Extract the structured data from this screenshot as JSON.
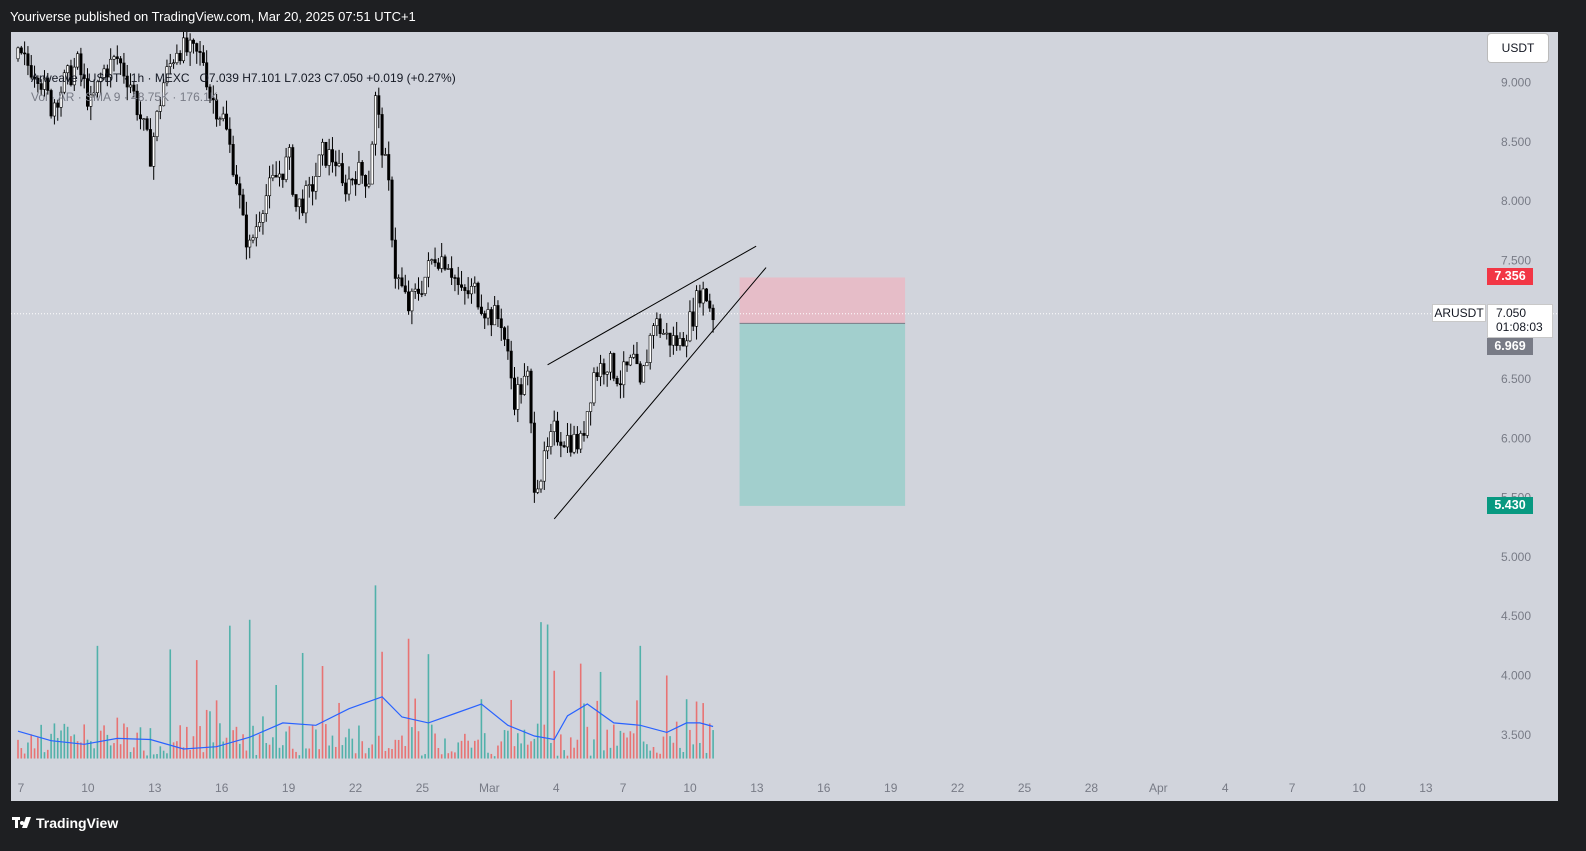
{
  "header": {
    "attribution": "Youriverse published on TradingView.com, Mar 20, 2025 07:51 UTC+1"
  },
  "footer": {
    "brand": "TradingView"
  },
  "legend": {
    "symbol_text": "Arweave / USDT · 1h · MEXC",
    "ohlc_text": "O7.039 H7.101 L7.023 C7.050 +0.019 (+0.27%)",
    "volume_text": "Vol · AR · SMA 9 · 48.75K · 176.1K"
  },
  "currency_button": "USDT",
  "price_tags": {
    "stop": "7.356",
    "entry": "6.969",
    "target": "5.430",
    "last_symbol": "ARUSDT",
    "last_price": "7.050",
    "countdown": "01:08:03"
  },
  "colors": {
    "up": "#26a69a",
    "down": "#ef5350",
    "candle": "#000000",
    "stop_zone": "#f7a9b8",
    "target_zone": "#8fcdc6",
    "sma": "#2962ff",
    "stop_tag": "#f23645",
    "entry_tag": "#787b86",
    "target_tag": "#089981"
  },
  "chart_data": {
    "type": "candlestick",
    "symbol": "ARUSDT",
    "ylim": [
      3.3,
      9.3
    ],
    "y_ticks": [
      "3.500",
      "4.000",
      "4.500",
      "5.000",
      "5.500",
      "6.000",
      "6.500",
      "7.000",
      "7.500",
      "8.000",
      "8.500",
      "9.000"
    ],
    "x_ticks": [
      "7",
      "10",
      "13",
      "16",
      "19",
      "22",
      "25",
      "Mar",
      "4",
      "7",
      "10",
      "13",
      "16",
      "19",
      "22",
      "25",
      "28",
      "Apr",
      "4",
      "7",
      "10",
      "13"
    ],
    "price_waypoints": [
      [
        0,
        9.2
      ],
      [
        6,
        9.1
      ],
      [
        10,
        8.8
      ],
      [
        14,
        9.0
      ],
      [
        18,
        9.15
      ],
      [
        22,
        8.8
      ],
      [
        26,
        9.1
      ],
      [
        30,
        9.2
      ],
      [
        34,
        9.0
      ],
      [
        38,
        8.6
      ],
      [
        40,
        8.4
      ],
      [
        44,
        9.0
      ],
      [
        48,
        9.3
      ],
      [
        52,
        9.25
      ],
      [
        56,
        9.2
      ],
      [
        58,
        8.9
      ],
      [
        62,
        8.7
      ],
      [
        66,
        8.2
      ],
      [
        68,
        7.8
      ],
      [
        70,
        7.6
      ],
      [
        74,
        8.0
      ],
      [
        78,
        8.2
      ],
      [
        82,
        8.35
      ],
      [
        84,
        7.95
      ],
      [
        88,
        8.05
      ],
      [
        92,
        8.4
      ],
      [
        96,
        8.35
      ],
      [
        98,
        8.1
      ],
      [
        102,
        8.25
      ],
      [
        106,
        8.2
      ],
      [
        108,
        8.85
      ],
      [
        112,
        8.1
      ],
      [
        114,
        7.4
      ],
      [
        118,
        7.1
      ],
      [
        122,
        7.3
      ],
      [
        126,
        7.55
      ],
      [
        130,
        7.5
      ],
      [
        134,
        7.2
      ],
      [
        138,
        7.25
      ],
      [
        142,
        7.05
      ],
      [
        146,
        7.0
      ],
      [
        150,
        6.35
      ],
      [
        154,
        6.5
      ],
      [
        156,
        5.65
      ],
      [
        158,
        5.7
      ],
      [
        162,
        6.05
      ],
      [
        166,
        6.0
      ],
      [
        170,
        5.95
      ],
      [
        174,
        6.55
      ],
      [
        178,
        6.65
      ],
      [
        182,
        6.5
      ],
      [
        186,
        6.65
      ],
      [
        188,
        6.4
      ],
      [
        192,
        7.0
      ],
      [
        196,
        6.85
      ],
      [
        200,
        6.8
      ],
      [
        204,
        7.05
      ],
      [
        206,
        7.25
      ],
      [
        208,
        7.2
      ],
      [
        210,
        7.05
      ]
    ],
    "volume_sma_waypoints": [
      [
        0,
        3.53
      ],
      [
        10,
        3.45
      ],
      [
        20,
        3.42
      ],
      [
        30,
        3.47
      ],
      [
        40,
        3.46
      ],
      [
        50,
        3.38
      ],
      [
        60,
        3.4
      ],
      [
        70,
        3.48
      ],
      [
        80,
        3.6
      ],
      [
        90,
        3.58
      ],
      [
        100,
        3.72
      ],
      [
        110,
        3.82
      ],
      [
        116,
        3.65
      ],
      [
        124,
        3.6
      ],
      [
        132,
        3.68
      ],
      [
        140,
        3.76
      ],
      [
        148,
        3.58
      ],
      [
        156,
        3.49
      ],
      [
        162,
        3.46
      ],
      [
        166,
        3.66
      ],
      [
        172,
        3.76
      ],
      [
        180,
        3.6
      ],
      [
        188,
        3.58
      ],
      [
        196,
        3.52
      ],
      [
        202,
        3.6
      ],
      [
        206,
        3.6
      ],
      [
        210,
        3.57
      ]
    ],
    "volume_spikes": [
      [
        24,
        4.25
      ],
      [
        46,
        4.22
      ],
      [
        54,
        4.13
      ],
      [
        64,
        4.42
      ],
      [
        70,
        4.47
      ],
      [
        78,
        3.92
      ],
      [
        86,
        4.19
      ],
      [
        92,
        4.08
      ],
      [
        108,
        4.76
      ],
      [
        110,
        4.2
      ],
      [
        118,
        4.31
      ],
      [
        124,
        4.18
      ],
      [
        140,
        3.8
      ],
      [
        158,
        4.45
      ],
      [
        160,
        4.43
      ],
      [
        162,
        4.04
      ],
      [
        170,
        4.1
      ],
      [
        176,
        4.03
      ],
      [
        188,
        4.25
      ],
      [
        196,
        4.0
      ],
      [
        202,
        3.8
      ]
    ],
    "lines": {
      "upper": {
        "from": {
          "i": 160,
          "p": 6.62
        },
        "to": {
          "i": 223,
          "p": 7.62
        }
      },
      "lower": {
        "from": {
          "i": 162,
          "p": 5.32
        },
        "to": {
          "i": 226,
          "p": 7.44
        }
      }
    },
    "position": {
      "stop": 7.356,
      "entry": 6.969,
      "target": 5.43,
      "from_i": 218,
      "to_i": 268
    },
    "last_price": 7.05
  }
}
